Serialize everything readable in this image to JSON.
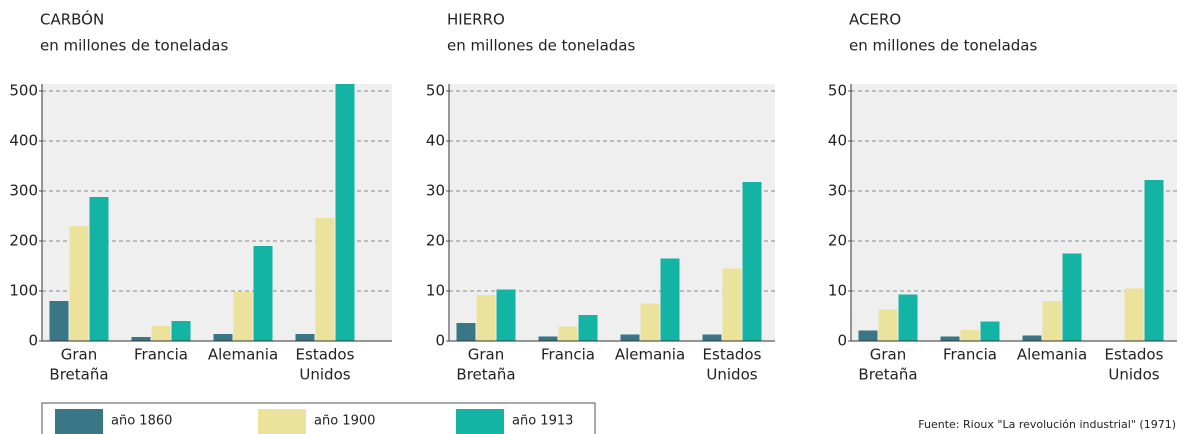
{
  "chart_data": [
    {
      "type": "bar",
      "title": "CARBÓN",
      "subtitle": "en millones de toneladas",
      "categories": [
        [
          "Gran",
          "Bretaña"
        ],
        [
          "Francia"
        ],
        [
          "Alemania"
        ],
        [
          "Estados",
          "Unidos"
        ]
      ],
      "series": [
        {
          "name": "año 1860",
          "color": "#3a7686",
          "values": [
            80,
            8,
            14,
            14
          ]
        },
        {
          "name": "año 1900",
          "color": "#ebe39b",
          "values": [
            230,
            30,
            98,
            246
          ]
        },
        {
          "name": "año 1913",
          "color": "#14b4a4",
          "values": [
            288,
            40,
            190,
            514
          ]
        }
      ],
      "ylim": [
        0,
        500
      ],
      "yticks": [
        0,
        100,
        200,
        300,
        400,
        500
      ],
      "grid": true
    },
    {
      "type": "bar",
      "title": "HIERRO",
      "subtitle": "en millones de toneladas",
      "categories": [
        [
          "Gran",
          "Bretaña"
        ],
        [
          "Francia"
        ],
        [
          "Alemania"
        ],
        [
          "Estados",
          "Unidos"
        ]
      ],
      "series": [
        {
          "name": "año 1860",
          "color": "#3a7686",
          "values": [
            3.6,
            0.9,
            1.3,
            1.3
          ]
        },
        {
          "name": "año 1900",
          "color": "#ebe39b",
          "values": [
            9.2,
            2.9,
            7.5,
            14.5
          ]
        },
        {
          "name": "año 1913",
          "color": "#14b4a4",
          "values": [
            10.3,
            5.2,
            16.5,
            31.8
          ]
        }
      ],
      "ylim": [
        0,
        50
      ],
      "yticks": [
        0,
        10,
        20,
        30,
        40,
        50
      ],
      "grid": true
    },
    {
      "type": "bar",
      "title": "ACERO",
      "subtitle": "en millones de toneladas",
      "categories": [
        [
          "Gran",
          "Bretaña"
        ],
        [
          "Francia"
        ],
        [
          "Alemania"
        ],
        [
          "Estados",
          "Unidos"
        ]
      ],
      "series": [
        {
          "name": "año 1860",
          "color": "#3a7686",
          "values": [
            2.1,
            0.9,
            1.1,
            null
          ]
        },
        {
          "name": "año 1900",
          "color": "#ebe39b",
          "values": [
            6.3,
            2.2,
            8,
            10.5
          ]
        },
        {
          "name": "año 1913",
          "color": "#14b4a4",
          "values": [
            9.3,
            3.9,
            17.5,
            32.2
          ]
        }
      ],
      "ylim": [
        0,
        50
      ],
      "yticks": [
        0,
        10,
        20,
        30,
        40,
        50
      ],
      "grid": true
    }
  ],
  "source": "Fuente: Rioux \"La revolución industrial\" (1971)"
}
